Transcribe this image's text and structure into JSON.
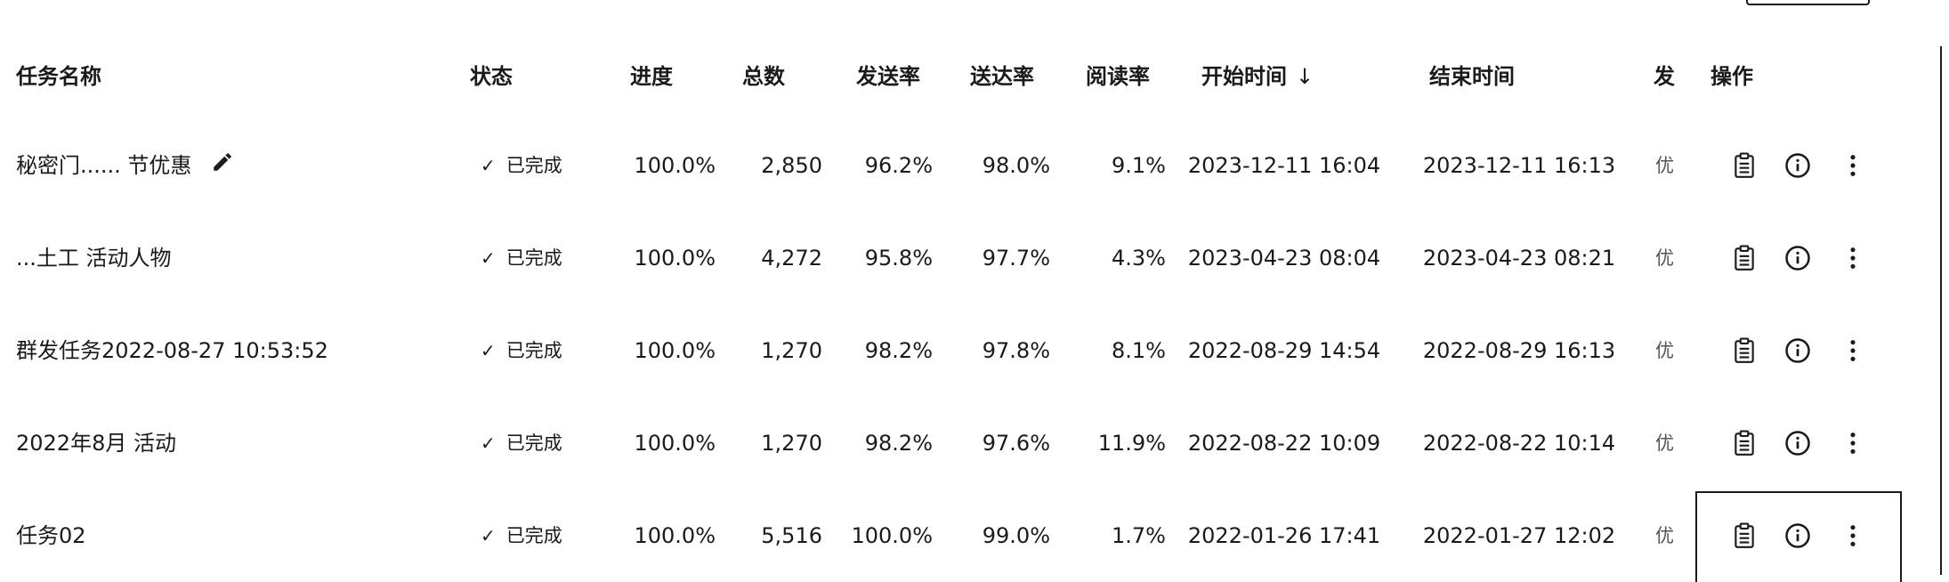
{
  "table": {
    "headers": {
      "name": "任务名称",
      "status": "状态",
      "progress": "进度",
      "total": "总数",
      "send_rate": "发送率",
      "deliver_rate": "送达率",
      "read_rate": "阅读率",
      "start_time": "开始时间",
      "start_sort_icon": "↓",
      "end_time": "结束时间",
      "sender": "发送",
      "actions": "操作"
    },
    "rows": [
      {
        "name": "秘密门...... 节优惠",
        "status": "已完成",
        "progress": "100.0%",
        "total": "2,850",
        "send_rate": "96.2%",
        "deliver_rate": "98.0%",
        "read_rate": "9.1%",
        "start": "2023-12-11 16:04",
        "end": "2023-12-11 16:13",
        "sender": "优"
      },
      {
        "name": "...土工 活动人物",
        "status": "已完成",
        "progress": "100.0%",
        "total": "4,272",
        "send_rate": "95.8%",
        "deliver_rate": "97.7%",
        "read_rate": "4.3%",
        "start": "2023-04-23 08:04",
        "end": "2023-04-23 08:21",
        "sender": "优"
      },
      {
        "name": "群发任务2022-08-27 10:53:52",
        "status": "已完成",
        "progress": "100.0%",
        "total": "1,270",
        "send_rate": "98.2%",
        "deliver_rate": "97.8%",
        "read_rate": "8.1%",
        "start": "2022-08-29 14:54",
        "end": "2022-08-29 16:13",
        "sender": "优"
      },
      {
        "name": "2022年8月 活动",
        "status": "已完成",
        "progress": "100.0%",
        "total": "1,270",
        "send_rate": "98.2%",
        "deliver_rate": "97.6%",
        "read_rate": "11.9%",
        "start": "2022-08-22 10:09",
        "end": "2022-08-22 10:14",
        "sender": "优"
      },
      {
        "name": "任务02",
        "status": "已完成",
        "progress": "100.0%",
        "total": "5,516",
        "send_rate": "100.0%",
        "deliver_rate": "99.0%",
        "read_rate": "1.7%",
        "start": "2022-01-26 17:41",
        "end": "2022-01-27 12:02",
        "sender": "优"
      }
    ],
    "status_icon": "check-icon",
    "row_action_icons": [
      "clipboard-icon",
      "info-icon",
      "more-vertical-icon"
    ],
    "name_edit_icon": "pencil-icon"
  }
}
